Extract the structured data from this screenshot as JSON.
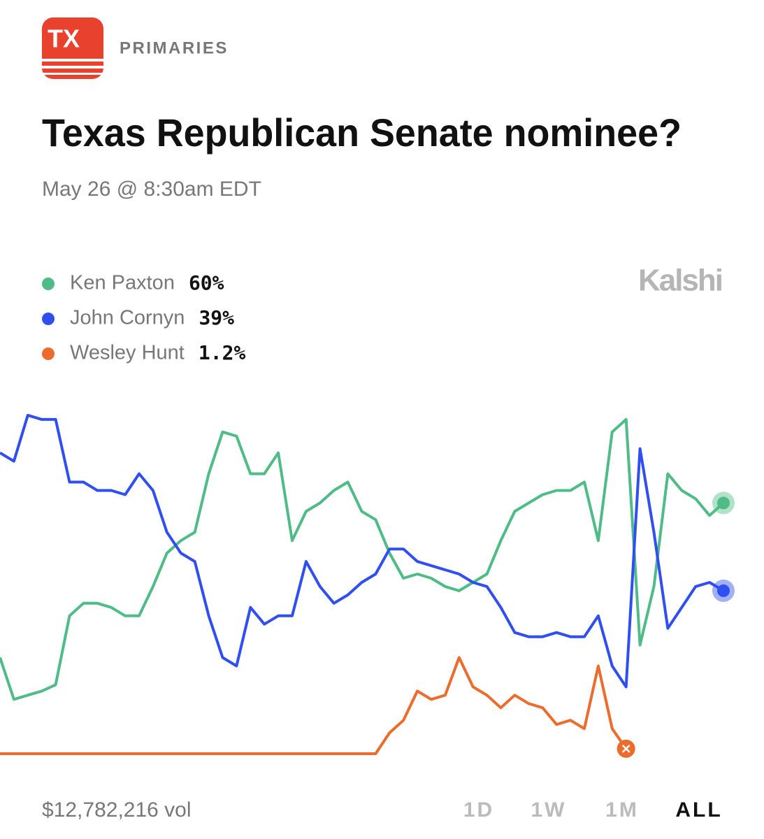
{
  "header": {
    "badge": "TX",
    "category": "PRIMARIES",
    "title": "Texas Republican Senate nominee?",
    "subtitle": "May 26 @ 8:30am EDT",
    "brand": "Kalshi"
  },
  "chart_data": {
    "type": "line",
    "ylim": [
      0,
      85
    ],
    "grid": false,
    "series": [
      {
        "name": "Ken Paxton",
        "label": "60%",
        "color": "#4fbc88",
        "values": [
          23,
          13,
          14,
          15,
          16.5,
          33,
          36,
          36,
          35,
          33,
          33,
          40,
          48,
          51,
          53,
          67,
          77,
          76,
          67,
          67,
          72,
          51,
          58,
          60,
          63,
          65,
          58,
          56,
          48,
          42,
          43,
          42,
          40,
          39,
          41,
          43,
          51,
          58,
          60,
          62,
          63,
          63,
          65,
          51,
          77,
          80,
          26,
          40,
          67,
          63,
          61,
          57,
          60
        ]
      },
      {
        "name": "John Cornyn",
        "label": "39%",
        "color": "#2f4ff0",
        "values": [
          72,
          70,
          81,
          80,
          80,
          65,
          65,
          63,
          63,
          62,
          67,
          63,
          53,
          48,
          46,
          33,
          23,
          21,
          35,
          31,
          33,
          33,
          46,
          40,
          36,
          38,
          41,
          43,
          49,
          49,
          46,
          45,
          44,
          43,
          41,
          40,
          35,
          29,
          28,
          28,
          29,
          28,
          28,
          33,
          21,
          16,
          73,
          53,
          30,
          35,
          40,
          41,
          39
        ]
      },
      {
        "name": "Wesley Hunt",
        "label": "1.2%",
        "color": "#ec6c2e",
        "values": [
          0,
          0,
          0,
          0,
          0,
          0,
          0,
          0,
          0,
          0,
          0,
          0,
          0,
          0,
          0,
          0,
          0,
          0,
          0,
          0,
          0,
          0,
          0,
          0,
          0,
          0,
          0,
          0,
          5,
          8,
          15,
          13,
          14,
          23,
          16,
          14,
          11,
          14,
          12,
          11,
          7,
          8,
          6,
          21,
          6,
          1.2,
          null,
          null,
          null,
          null,
          null,
          null,
          null
        ]
      }
    ]
  },
  "footer": {
    "volume": "$12,782,216 vol",
    "ranges": [
      "1D",
      "1W",
      "1M",
      "ALL"
    ],
    "active_index": 3
  }
}
